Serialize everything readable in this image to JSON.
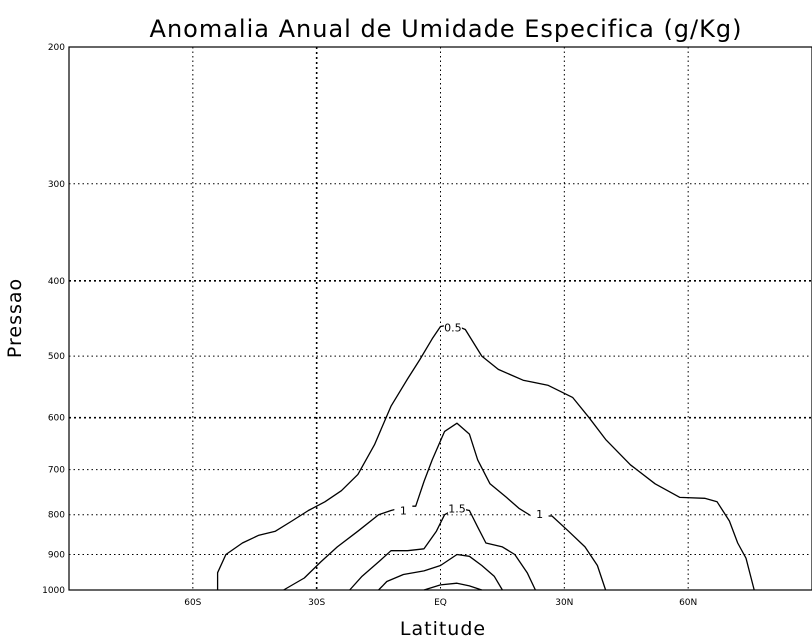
{
  "chart_data": {
    "type": "contour",
    "title": "Anomalia Anual de Umidade Especifica (g/Kg)",
    "xlabel": "Latitude",
    "ylabel": "Pressao",
    "xlim": [
      -90,
      90
    ],
    "ylim": [
      1000,
      200
    ],
    "yscale": "log",
    "x_ticks": [
      {
        "value": -60,
        "label": "60S"
      },
      {
        "value": -30,
        "label": "30S"
      },
      {
        "value": 0,
        "label": "EQ"
      },
      {
        "value": 30,
        "label": "30N"
      },
      {
        "value": 60,
        "label": "60N"
      }
    ],
    "y_ticks": [
      {
        "value": 200,
        "label": "200"
      },
      {
        "value": 300,
        "label": "300"
      },
      {
        "value": 400,
        "label": "400"
      },
      {
        "value": 500,
        "label": "500"
      },
      {
        "value": 600,
        "label": "600"
      },
      {
        "value": 700,
        "label": "700"
      },
      {
        "value": 800,
        "label": "800"
      },
      {
        "value": 900,
        "label": "900"
      },
      {
        "value": 1000,
        "label": "1000"
      }
    ],
    "grid": true,
    "contours": [
      {
        "level": "0.5",
        "label_at": [
          3,
          462
        ],
        "points": [
          [
            -54,
            1000
          ],
          [
            -54,
            950
          ],
          [
            -52,
            900
          ],
          [
            -48,
            870
          ],
          [
            -44,
            850
          ],
          [
            -40,
            840
          ],
          [
            -36,
            815
          ],
          [
            -32,
            790
          ],
          [
            -28,
            770
          ],
          [
            -24,
            745
          ],
          [
            -20,
            710
          ],
          [
            -16,
            650
          ],
          [
            -12,
            580
          ],
          [
            -8,
            535
          ],
          [
            -5,
            505
          ],
          [
            -2,
            475
          ],
          [
            0,
            458
          ],
          [
            3,
            455
          ],
          [
            6,
            462
          ],
          [
            10,
            500
          ],
          [
            14,
            520
          ],
          [
            20,
            537
          ],
          [
            26,
            545
          ],
          [
            32,
            565
          ],
          [
            36,
            600
          ],
          [
            40,
            640
          ],
          [
            46,
            690
          ],
          [
            52,
            730
          ],
          [
            58,
            760
          ],
          [
            64,
            762
          ],
          [
            67,
            770
          ],
          [
            70,
            815
          ],
          [
            72,
            870
          ],
          [
            74,
            910
          ],
          [
            76,
            1000
          ]
        ]
      },
      {
        "level": "1",
        "label_at_list": [
          [
            -9,
            795
          ],
          [
            24,
            803
          ]
        ],
        "points": [
          [
            -38,
            1000
          ],
          [
            -33,
            965
          ],
          [
            -29,
            920
          ],
          [
            -25,
            880
          ],
          [
            -20,
            840
          ],
          [
            -15,
            800
          ],
          [
            -12,
            790
          ],
          [
            -8,
            780
          ],
          [
            -6,
            780
          ],
          [
            -4,
            725
          ],
          [
            -2,
            680
          ],
          [
            1,
            625
          ],
          [
            4,
            610
          ],
          [
            7,
            630
          ],
          [
            9,
            680
          ],
          [
            12,
            730
          ],
          [
            16,
            760
          ],
          [
            19,
            785
          ],
          [
            22,
            803
          ],
          [
            27,
            803
          ],
          [
            31,
            840
          ],
          [
            35,
            880
          ],
          [
            38,
            930
          ],
          [
            40,
            1000
          ]
        ]
      },
      {
        "level": "1.5",
        "label_at": [
          4,
          790
        ],
        "points": [
          [
            -22,
            1000
          ],
          [
            -19,
            960
          ],
          [
            -15,
            920
          ],
          [
            -12,
            890
          ],
          [
            -8,
            890
          ],
          [
            -4,
            885
          ],
          [
            -1,
            840
          ],
          [
            1,
            800
          ],
          [
            4,
            784
          ],
          [
            7,
            790
          ],
          [
            9,
            830
          ],
          [
            11,
            870
          ],
          [
            15,
            880
          ],
          [
            18,
            900
          ],
          [
            21,
            950
          ],
          [
            23,
            1000
          ]
        ]
      },
      {
        "level": "",
        "points": [
          [
            -15,
            1000
          ],
          [
            -13,
            975
          ],
          [
            -9,
            955
          ],
          [
            -4,
            945
          ],
          [
            0,
            930
          ],
          [
            4,
            900
          ],
          [
            7,
            905
          ],
          [
            10,
            930
          ],
          [
            13,
            960
          ],
          [
            15,
            1000
          ]
        ]
      },
      {
        "level": "",
        "points": [
          [
            -4,
            1000
          ],
          [
            0,
            985
          ],
          [
            4,
            980
          ],
          [
            7,
            988
          ],
          [
            10,
            1000
          ]
        ]
      }
    ]
  }
}
